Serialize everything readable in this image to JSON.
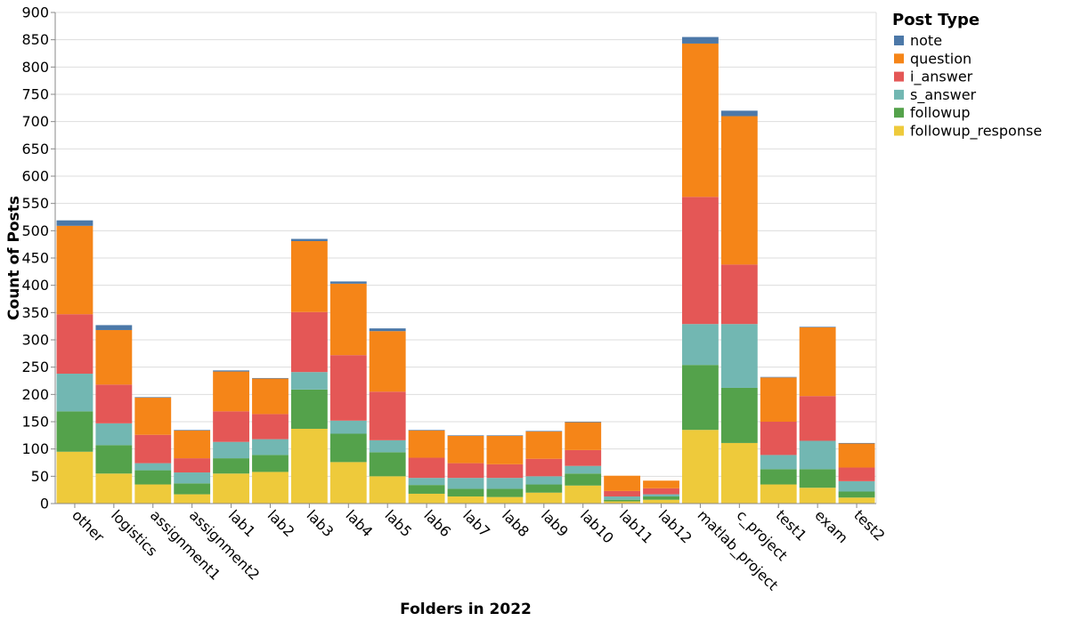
{
  "chart_data": {
    "type": "bar",
    "stacked": true,
    "xlabel": "Folders in 2022",
    "ylabel": "Count of Posts",
    "ylim": [
      0,
      900
    ],
    "yticks": [
      0,
      50,
      100,
      150,
      200,
      250,
      300,
      350,
      400,
      450,
      500,
      550,
      600,
      650,
      700,
      750,
      800,
      850,
      900
    ],
    "grid": true,
    "legend_title": "Post Type",
    "legend_position": "top-right",
    "categories": [
      "other",
      "logistics",
      "assignment1",
      "assignment2",
      "lab1",
      "lab2",
      "lab3",
      "lab4",
      "lab5",
      "lab6",
      "lab7",
      "lab8",
      "lab9",
      "lab10",
      "lab11",
      "lab12",
      "matlab_project",
      "c_project",
      "test1",
      "exam",
      "test2"
    ],
    "series": [
      {
        "name": "followup_response",
        "color": "#eeca3b",
        "values": [
          95,
          55,
          35,
          17,
          55,
          58,
          137,
          76,
          50,
          18,
          13,
          12,
          20,
          33,
          4,
          7,
          135,
          111,
          35,
          29,
          11
        ]
      },
      {
        "name": "followup",
        "color": "#54a24b",
        "values": [
          74,
          52,
          26,
          20,
          28,
          31,
          72,
          52,
          44,
          16,
          14,
          15,
          15,
          22,
          3,
          6,
          119,
          101,
          28,
          34,
          11
        ]
      },
      {
        "name": "s_answer",
        "color": "#72b7b2",
        "values": [
          69,
          40,
          13,
          20,
          30,
          29,
          32,
          24,
          22,
          13,
          20,
          20,
          15,
          14,
          6,
          4,
          75,
          117,
          26,
          52,
          19
        ]
      },
      {
        "name": "i_answer",
        "color": "#e45756",
        "values": [
          109,
          71,
          52,
          26,
          56,
          46,
          110,
          120,
          89,
          37,
          27,
          25,
          32,
          29,
          10,
          11,
          233,
          109,
          61,
          82,
          25
        ]
      },
      {
        "name": "question",
        "color": "#f58518",
        "values": [
          162,
          100,
          68,
          51,
          73,
          65,
          130,
          131,
          111,
          50,
          50,
          52,
          50,
          51,
          28,
          14,
          281,
          272,
          81,
          126,
          44
        ]
      },
      {
        "name": "note",
        "color": "#4c78a8",
        "values": [
          10,
          9,
          1,
          1,
          2,
          1,
          4,
          4,
          5,
          1,
          1,
          1,
          1,
          1,
          0,
          0,
          12,
          10,
          1,
          1,
          1
        ]
      }
    ]
  }
}
